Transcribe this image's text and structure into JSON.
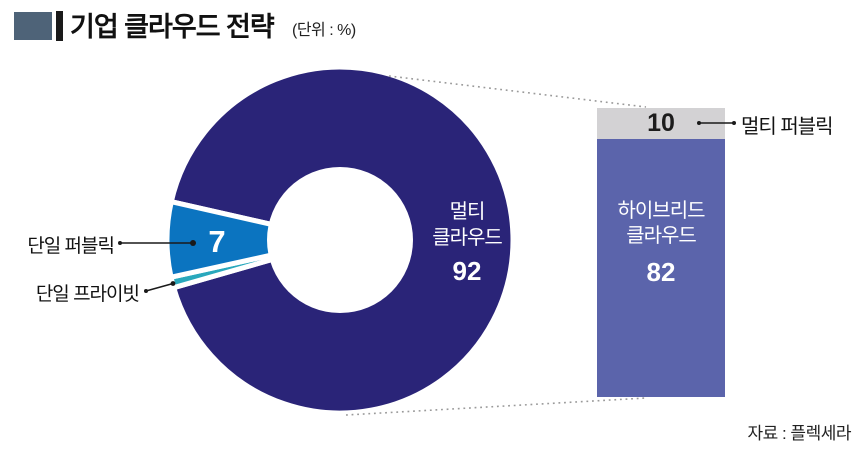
{
  "header": {
    "title": "기업 클라우드 전략",
    "unit_label": "(단위 : %)"
  },
  "chart_data": {
    "type": "pie",
    "title": "기업 클라우드 전략",
    "unit": "%",
    "legend_position": "none",
    "grid": false,
    "donut": {
      "start_angle_clockwise_from_top": -77.2,
      "slices": [
        {
          "label": "멀티 클라우드",
          "label_lines": [
            "멀티",
            "클라우드"
          ],
          "value": 92,
          "color": "#2a2478",
          "text_color": "#ffffff"
        },
        {
          "label": "단일 프라이빗",
          "value": 1,
          "color": "#29a8bc"
        },
        {
          "label": "단일 퍼블릭",
          "value": 7,
          "color": "#0b74c0",
          "text_color": "#ffffff"
        }
      ]
    },
    "bar": {
      "segments": [
        {
          "label": "멀티 퍼블릭",
          "value": 10,
          "color": "#d3d2d4",
          "text_color": "#1c1c1c"
        },
        {
          "label": "하이브리드 클라우드",
          "label_lines": [
            "하이브리드",
            "클라우드"
          ],
          "value": 82,
          "color": "#5b64ab",
          "text_color": "#ffffff"
        }
      ]
    },
    "source": "자료 : 플렉세라"
  }
}
